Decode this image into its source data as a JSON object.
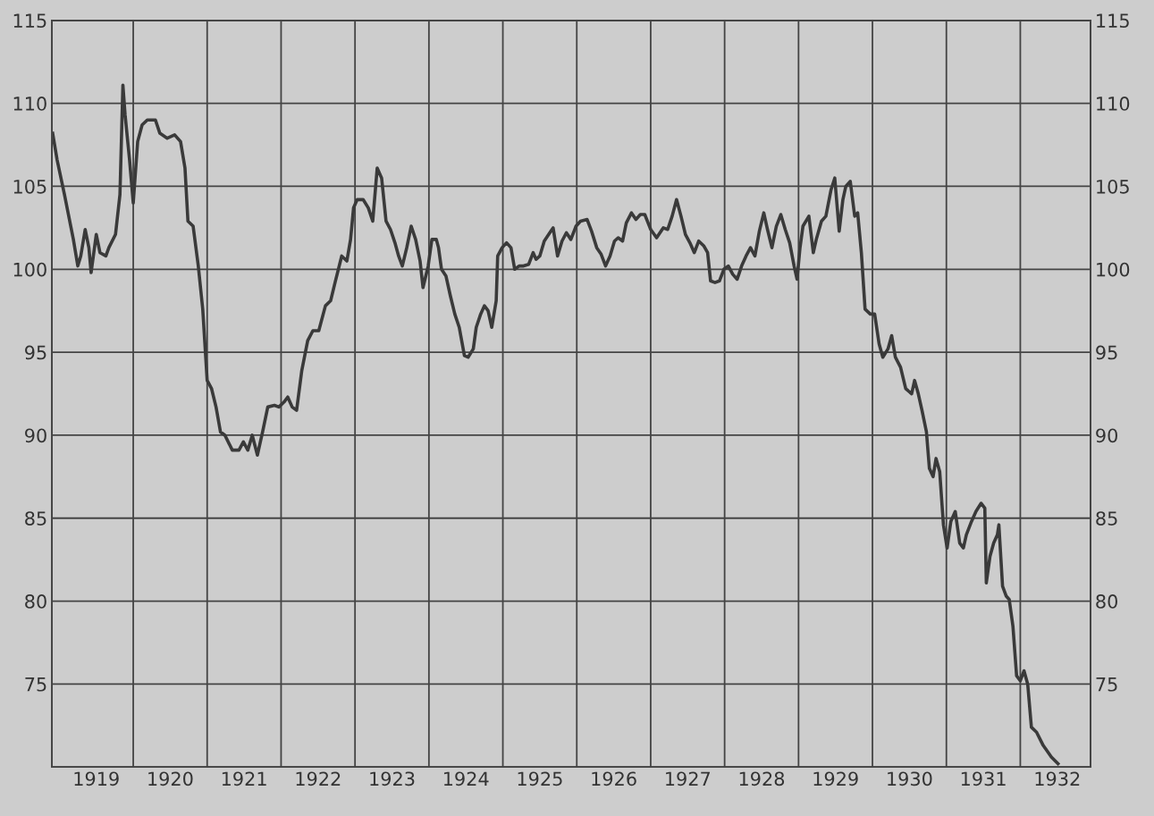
{
  "chart_data": {
    "type": "line",
    "x": [
      1918.91,
      1918.97,
      1919.07,
      1919.19,
      1919.25,
      1919.29,
      1919.35,
      1919.4,
      1919.43,
      1919.5,
      1919.55,
      1919.63,
      1919.67,
      1919.76,
      1919.82,
      1919.86,
      1919.89,
      1919.95,
      1920.0,
      1920.06,
      1920.12,
      1920.19,
      1920.3,
      1920.36,
      1920.46,
      1920.56,
      1920.64,
      1920.7,
      1920.74,
      1920.81,
      1920.88,
      1920.94,
      1921.0,
      1921.06,
      1921.12,
      1921.18,
      1921.24,
      1921.34,
      1921.43,
      1921.49,
      1921.55,
      1921.61,
      1921.68,
      1921.75,
      1921.82,
      1921.91,
      1921.97,
      1922.04,
      1922.09,
      1922.15,
      1922.21,
      1922.28,
      1922.36,
      1922.43,
      1922.51,
      1922.6,
      1922.67,
      1922.73,
      1922.82,
      1922.89,
      1922.94,
      1922.98,
      1923.03,
      1923.11,
      1923.18,
      1923.24,
      1923.3,
      1923.36,
      1923.42,
      1923.48,
      1923.54,
      1923.59,
      1923.64,
      1923.7,
      1923.76,
      1923.82,
      1923.88,
      1923.92,
      1923.99,
      1924.04,
      1924.1,
      1924.13,
      1924.17,
      1924.23,
      1924.29,
      1924.35,
      1924.41,
      1924.48,
      1924.53,
      1924.6,
      1924.64,
      1924.7,
      1924.75,
      1924.8,
      1924.85,
      1924.91,
      1924.93,
      1924.99,
      1925.05,
      1925.11,
      1925.16,
      1925.22,
      1925.28,
      1925.35,
      1925.41,
      1925.45,
      1925.5,
      1925.56,
      1925.62,
      1925.68,
      1925.74,
      1925.8,
      1925.86,
      1925.92,
      1925.99,
      1926.05,
      1926.14,
      1926.2,
      1926.27,
      1926.33,
      1926.39,
      1926.45,
      1926.51,
      1926.56,
      1926.62,
      1926.67,
      1926.74,
      1926.8,
      1926.86,
      1926.92,
      1927.0,
      1927.08,
      1927.17,
      1927.23,
      1927.29,
      1927.35,
      1927.41,
      1927.47,
      1927.53,
      1927.59,
      1927.65,
      1927.72,
      1927.77,
      1927.81,
      1927.87,
      1927.93,
      1927.99,
      1928.05,
      1928.11,
      1928.17,
      1928.23,
      1928.29,
      1928.35,
      1928.41,
      1928.47,
      1928.53,
      1928.58,
      1928.64,
      1928.7,
      1928.76,
      1928.82,
      1928.88,
      1928.94,
      1928.98,
      1929.02,
      1929.06,
      1929.14,
      1929.2,
      1929.24,
      1929.31,
      1929.37,
      1929.44,
      1929.49,
      1929.55,
      1929.6,
      1929.64,
      1929.7,
      1929.76,
      1929.8,
      1929.85,
      1929.9,
      1929.97,
      1930.03,
      1930.09,
      1930.14,
      1930.21,
      1930.26,
      1930.31,
      1930.38,
      1930.45,
      1930.53,
      1930.57,
      1930.62,
      1930.67,
      1930.73,
      1930.77,
      1930.82,
      1930.86,
      1930.91,
      1930.96,
      1931.01,
      1931.06,
      1931.12,
      1931.18,
      1931.23,
      1931.27,
      1931.34,
      1931.4,
      1931.47,
      1931.52,
      1931.54,
      1931.59,
      1931.64,
      1931.69,
      1931.71,
      1931.76,
      1931.81,
      1931.85,
      1931.9,
      1931.95,
      1932.0,
      1932.05,
      1932.1,
      1932.15,
      1932.22,
      1932.31,
      1932.42,
      1932.51
    ],
    "series": [
      {
        "color": "#3a3a3a",
        "values": [
          108.2,
          106.6,
          104.5,
          101.8,
          100.2,
          100.8,
          102.4,
          101.3,
          99.8,
          102.1,
          101.0,
          100.8,
          101.3,
          102.1,
          104.5,
          111.1,
          109.3,
          106.6,
          104.0,
          107.7,
          108.7,
          109.0,
          109.0,
          108.2,
          107.9,
          108.1,
          107.7,
          106.1,
          102.9,
          102.6,
          100.2,
          97.6,
          93.3,
          92.8,
          91.7,
          90.2,
          90.0,
          89.1,
          89.1,
          89.6,
          89.1,
          90.0,
          88.8,
          90.2,
          91.7,
          91.8,
          91.7,
          92.0,
          92.3,
          91.7,
          91.5,
          93.9,
          95.7,
          96.3,
          96.3,
          97.8,
          98.1,
          99.2,
          100.8,
          100.5,
          101.8,
          103.7,
          104.2,
          104.2,
          103.7,
          102.9,
          106.1,
          105.5,
          102.9,
          102.4,
          101.6,
          100.8,
          100.2,
          101.3,
          102.6,
          101.8,
          100.5,
          98.9,
          100.2,
          101.8,
          101.8,
          101.3,
          100.0,
          99.6,
          98.4,
          97.3,
          96.5,
          94.8,
          94.7,
          95.2,
          96.5,
          97.3,
          97.8,
          97.5,
          96.5,
          98.1,
          100.8,
          101.3,
          101.6,
          101.3,
          100.0,
          100.2,
          100.2,
          100.3,
          101.0,
          100.6,
          100.8,
          101.7,
          102.1,
          102.5,
          100.8,
          101.7,
          102.2,
          101.8,
          102.6,
          102.9,
          103.0,
          102.3,
          101.3,
          100.9,
          100.2,
          100.8,
          101.7,
          101.9,
          101.7,
          102.8,
          103.4,
          103.0,
          103.3,
          103.3,
          102.4,
          101.9,
          102.5,
          102.4,
          103.2,
          104.2,
          103.2,
          102.1,
          101.6,
          101.0,
          101.7,
          101.4,
          101.0,
          99.3,
          99.2,
          99.3,
          100.0,
          100.2,
          99.7,
          99.4,
          100.2,
          100.8,
          101.3,
          100.8,
          102.3,
          103.4,
          102.4,
          101.3,
          102.6,
          103.3,
          102.4,
          101.6,
          100.2,
          99.4,
          101.3,
          102.6,
          103.2,
          101.0,
          101.8,
          102.9,
          103.2,
          104.8,
          105.5,
          102.3,
          104.2,
          105.0,
          105.3,
          103.2,
          103.4,
          101.0,
          97.6,
          97.3,
          97.3,
          95.5,
          94.7,
          95.2,
          96.0,
          94.7,
          94.1,
          92.8,
          92.5,
          93.3,
          92.5,
          91.5,
          90.2,
          88.0,
          87.5,
          88.6,
          87.8,
          84.6,
          83.2,
          84.8,
          85.4,
          83.5,
          83.2,
          84.0,
          84.8,
          85.4,
          85.9,
          85.6,
          81.1,
          82.7,
          83.5,
          84.0,
          84.6,
          80.9,
          80.3,
          80.1,
          78.5,
          75.5,
          75.2,
          75.8,
          75.0,
          72.4,
          72.1,
          71.3,
          70.6,
          70.2
        ]
      }
    ],
    "xlim": [
      1918.9,
      1932.95
    ],
    "xticks": [
      {
        "value": 1919.5,
        "label": "1919"
      },
      {
        "value": 1920,
        "label": null
      },
      {
        "value": 1920.5,
        "label": "1920"
      },
      {
        "value": 1921,
        "label": null
      },
      {
        "value": 1921.5,
        "label": "1921"
      },
      {
        "value": 1922,
        "label": null
      },
      {
        "value": 1922.5,
        "label": "1922"
      },
      {
        "value": 1923,
        "label": null
      },
      {
        "value": 1923.5,
        "label": "1923"
      },
      {
        "value": 1924,
        "label": null
      },
      {
        "value": 1924.5,
        "label": "1924"
      },
      {
        "value": 1925,
        "label": null
      },
      {
        "value": 1925.5,
        "label": "1925"
      },
      {
        "value": 1926,
        "label": null
      },
      {
        "value": 1926.5,
        "label": "1926"
      },
      {
        "value": 1927,
        "label": null
      },
      {
        "value": 1927.5,
        "label": "1927"
      },
      {
        "value": 1928,
        "label": null
      },
      {
        "value": 1928.5,
        "label": "1928"
      },
      {
        "value": 1929,
        "label": null
      },
      {
        "value": 1929.5,
        "label": "1929"
      },
      {
        "value": 1930,
        "label": null
      },
      {
        "value": 1930.5,
        "label": "1930"
      },
      {
        "value": 1931,
        "label": null
      },
      {
        "value": 1931.5,
        "label": "1931"
      },
      {
        "value": 1932,
        "label": null
      },
      {
        "value": 1932.5,
        "label": "1932"
      }
    ],
    "ylim": [
      70,
      115
    ],
    "yticks": [
      75,
      80,
      85,
      90,
      95,
      100,
      105,
      110,
      115
    ],
    "y2lim": [
      70,
      115
    ],
    "y2ticks": [
      75,
      80,
      85,
      90,
      95,
      100,
      105,
      110,
      115
    ],
    "grid": true,
    "line_style": "solid",
    "marker": "none"
  }
}
